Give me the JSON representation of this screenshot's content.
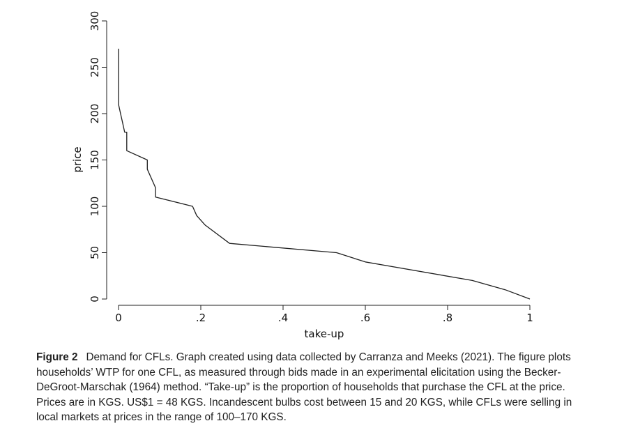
{
  "chart_data": {
    "type": "line",
    "title": "",
    "xlabel": "take-up",
    "ylabel": "price",
    "xlim": [
      0,
      1
    ],
    "ylim": [
      0,
      300
    ],
    "x_ticks": [
      0,
      0.2,
      0.4,
      0.6,
      0.8,
      1
    ],
    "x_tick_labels": [
      "0",
      ".2",
      ".4",
      ".6",
      ".8",
      "1"
    ],
    "y_ticks": [
      0,
      50,
      100,
      150,
      200,
      250,
      300
    ],
    "y_tick_labels": [
      "0",
      "50",
      "100",
      "150",
      "200",
      "250",
      "300"
    ],
    "grid": false,
    "legend": "none",
    "line_color": "#1f1f1f",
    "series": [
      {
        "x": [
          0,
          0,
          0.005,
          0.01,
          0.015,
          0.02,
          0.02,
          0.07,
          0.07,
          0.09,
          0.09,
          0.18,
          0.19,
          0.21,
          0.27,
          0.53,
          0.6,
          0.86,
          0.94,
          1.0
        ],
        "y": [
          270,
          210,
          200,
          190,
          180,
          180,
          160,
          150,
          140,
          120,
          110,
          100,
          90,
          80,
          60,
          50,
          40,
          20,
          10,
          0
        ]
      }
    ]
  },
  "caption": {
    "label": "Figure 2",
    "text": "Demand for CFLs. Graph created using data collected by Carranza and Meeks (2021). The figure plots households’ WTP for one CFL, as measured through bids made in an experimental elicitation using the Becker-DeGroot-Marschak (1964) method. “Take-up” is the proportion of households that purchase the CFL at the price. Prices are in KGS. US$1 = 48 KGS. Incandescent bulbs cost between 15 and 20 KGS, while CFLs were selling in local markets at prices in the range of 100–170 KGS."
  }
}
